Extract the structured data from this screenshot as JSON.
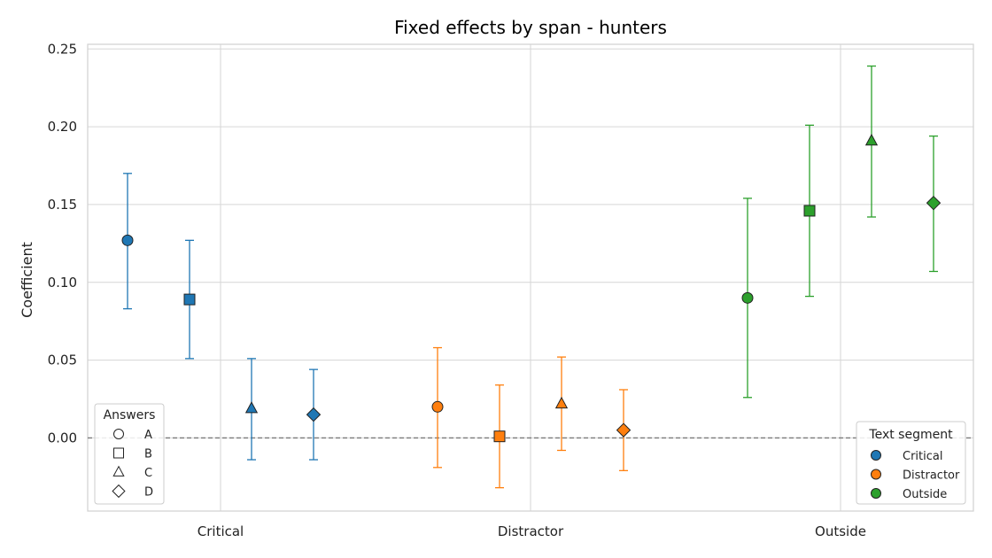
{
  "chart_data": {
    "type": "scatter",
    "title": "Fixed effects by span - hunters",
    "xlabel": "",
    "ylabel": "Coefficient",
    "categories": [
      "Critical",
      "Distractor",
      "Outside"
    ],
    "ylim": [
      -0.047,
      0.253
    ],
    "yticks": [
      "0.00",
      "0.05",
      "0.10",
      "0.15",
      "0.20",
      "0.25"
    ],
    "ytick_values": [
      0.0,
      0.05,
      0.1,
      0.15,
      0.2,
      0.25
    ],
    "grid": true,
    "reference_line": 0.0,
    "series": [
      {
        "name": "Critical",
        "color": "#1f77b4",
        "points": [
          {
            "answer": "A",
            "marker": "circle",
            "y": 0.127,
            "lo": 0.083,
            "hi": 0.17
          },
          {
            "answer": "B",
            "marker": "square",
            "y": 0.089,
            "lo": 0.051,
            "hi": 0.127
          },
          {
            "answer": "C",
            "marker": "triangle",
            "y": 0.019,
            "lo": -0.014,
            "hi": 0.051
          },
          {
            "answer": "D",
            "marker": "diamond",
            "y": 0.015,
            "lo": -0.014,
            "hi": 0.044
          }
        ]
      },
      {
        "name": "Distractor",
        "color": "#ff7f0e",
        "points": [
          {
            "answer": "A",
            "marker": "circle",
            "y": 0.02,
            "lo": -0.019,
            "hi": 0.058
          },
          {
            "answer": "B",
            "marker": "square",
            "y": 0.001,
            "lo": -0.032,
            "hi": 0.034
          },
          {
            "answer": "C",
            "marker": "triangle",
            "y": 0.022,
            "lo": -0.008,
            "hi": 0.052
          },
          {
            "answer": "D",
            "marker": "diamond",
            "y": 0.005,
            "lo": -0.021,
            "hi": 0.031
          }
        ]
      },
      {
        "name": "Outside",
        "color": "#2ca02c",
        "points": [
          {
            "answer": "A",
            "marker": "circle",
            "y": 0.09,
            "lo": 0.026,
            "hi": 0.154
          },
          {
            "answer": "B",
            "marker": "square",
            "y": 0.146,
            "lo": 0.091,
            "hi": 0.201
          },
          {
            "answer": "C",
            "marker": "triangle",
            "y": 0.191,
            "lo": 0.142,
            "hi": 0.239
          },
          {
            "answer": "D",
            "marker": "diamond",
            "y": 0.151,
            "lo": 0.107,
            "hi": 0.194
          }
        ]
      }
    ],
    "legend_answers": {
      "title": "Answers",
      "placement": "lower-left",
      "items": [
        {
          "label": "A",
          "marker": "circle"
        },
        {
          "label": "B",
          "marker": "square"
        },
        {
          "label": "C",
          "marker": "triangle"
        },
        {
          "label": "D",
          "marker": "diamond"
        }
      ]
    },
    "legend_segments": {
      "title": "Text segment",
      "placement": "lower-right",
      "items": [
        {
          "label": "Critical",
          "color": "#1f77b4"
        },
        {
          "label": "Distractor",
          "color": "#ff7f0e"
        },
        {
          "label": "Outside",
          "color": "#2ca02c"
        }
      ]
    }
  }
}
